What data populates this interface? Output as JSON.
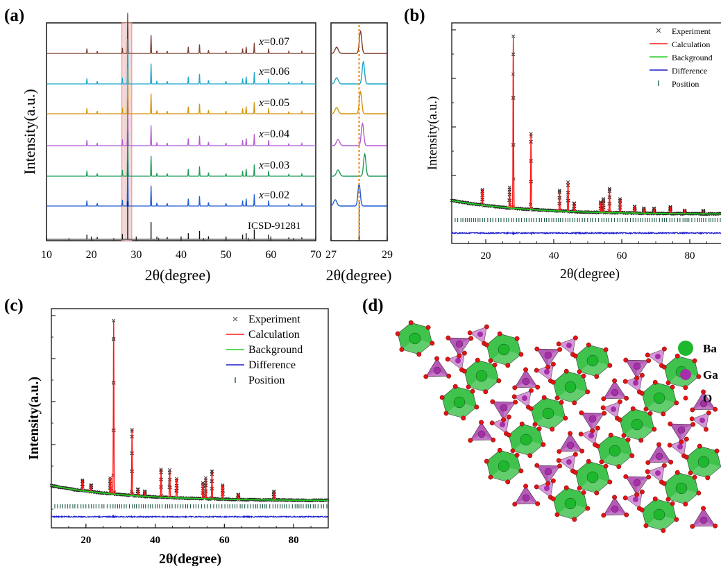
{
  "panels": {
    "a": {
      "label": "(a)",
      "xlabel": "2θ(degree)",
      "ylabel": "Intensity(a.u.)",
      "zoom_xlabel": "2θ(degree)",
      "reference_label": "ICSD-91281",
      "series_labels": [
        {
          "x_prefix": "x",
          "value_text": "=0.07"
        },
        {
          "x_prefix": "x",
          "value_text": "=0.06"
        },
        {
          "x_prefix": "x",
          "value_text": "=0.05"
        },
        {
          "x_prefix": "x",
          "value_text": "=0.04"
        },
        {
          "x_prefix": "x",
          "value_text": "=0.03"
        },
        {
          "x_prefix": "x",
          "value_text": "=0.02"
        }
      ]
    },
    "b": {
      "label": "(b)",
      "xlabel": "2θ(degree)",
      "ylabel": "Intensity(a.u.)",
      "legend": [
        "Experiment",
        "Calculation",
        "Background",
        "Difference",
        "Position"
      ]
    },
    "c": {
      "label": "(c)",
      "xlabel": "2θ(degree)",
      "ylabel": "Intensity(a.u.)",
      "legend": [
        "Experiment",
        "Calculation",
        "Background",
        "Difference",
        "Position"
      ]
    },
    "d": {
      "label": "(d)",
      "legend": [
        {
          "symbol": "Ba",
          "color": "#1db82e"
        },
        {
          "symbol": "Ga",
          "color": "#a52fa8"
        },
        {
          "symbol": "O",
          "color": "#e01515"
        }
      ]
    }
  },
  "colors": {
    "experiment": "#444444",
    "calculation": "#ff1a1a",
    "background": "#22cc22",
    "difference": "#1a1acc",
    "position": "#1e5a46",
    "highlight_band": "#f3b6b6",
    "highlight_band2": "#d9d9d9",
    "dash_line": "#f28c1e"
  },
  "chart_data": [
    {
      "type": "line",
      "panel": "a-main",
      "xlabel": "2θ(degree)",
      "ylabel": "Intensity(a.u.)",
      "xlim": [
        10,
        70
      ],
      "xticks": [
        10,
        20,
        30,
        40,
        50,
        60,
        70
      ],
      "series": [
        {
          "name": "x=0.07",
          "color": "#7a3b2e"
        },
        {
          "name": "x=0.06",
          "color": "#1aa6c9"
        },
        {
          "name": "x=0.05",
          "color": "#d4940a"
        },
        {
          "name": "x=0.04",
          "color": "#b25bd1"
        },
        {
          "name": "x=0.03",
          "color": "#1f9a5a"
        },
        {
          "name": "x=0.02",
          "color": "#1f5bd1"
        },
        {
          "name": "ICSD-91281",
          "color": "#111111"
        }
      ],
      "peaks": [
        {
          "x": 19.0,
          "h": 0.12
        },
        {
          "x": 21.3,
          "h": 0.06
        },
        {
          "x": 26.9,
          "h": 0.14
        },
        {
          "x": 28.1,
          "h": 1.0
        },
        {
          "x": 33.3,
          "h": 0.45
        },
        {
          "x": 34.6,
          "h": 0.07
        },
        {
          "x": 36.9,
          "h": 0.06
        },
        {
          "x": 41.6,
          "h": 0.16
        },
        {
          "x": 44.1,
          "h": 0.22
        },
        {
          "x": 46.1,
          "h": 0.08
        },
        {
          "x": 50.0,
          "h": 0.06
        },
        {
          "x": 53.7,
          "h": 0.12
        },
        {
          "x": 54.5,
          "h": 0.16
        },
        {
          "x": 56.3,
          "h": 0.26
        },
        {
          "x": 59.5,
          "h": 0.12
        },
        {
          "x": 64.0,
          "h": 0.05
        },
        {
          "x": 66.9,
          "h": 0.05
        }
      ],
      "highlight_range": [
        26.8,
        29.0
      ]
    },
    {
      "type": "line",
      "panel": "a-zoom",
      "xlabel": "2θ(degree)",
      "xlim": [
        27,
        29
      ],
      "xticks": [
        27,
        28,
        29
      ],
      "reference_line_x": 28.0,
      "peak_positions": [
        28.05,
        28.15,
        28.05,
        28.12,
        28.2,
        28.0
      ],
      "small_peak_positions": [
        27.2,
        27.2,
        27.2,
        27.25,
        27.25,
        27.15
      ]
    },
    {
      "type": "scatter",
      "panel": "b",
      "xlabel": "2θ(degree)",
      "ylabel": "Intensity(a.u.)",
      "xlim": [
        10,
        90
      ],
      "xticks": [
        20,
        40,
        60,
        80
      ],
      "series": [
        {
          "name": "Experiment"
        },
        {
          "name": "Calculation"
        },
        {
          "name": "Background"
        },
        {
          "name": "Difference"
        },
        {
          "name": "Position"
        }
      ],
      "peaks": [
        {
          "x": 19.0,
          "h": 0.09
        },
        {
          "x": 27.0,
          "h": 0.12
        },
        {
          "x": 28.1,
          "h": 1.0
        },
        {
          "x": 33.3,
          "h": 0.44
        },
        {
          "x": 41.7,
          "h": 0.12
        },
        {
          "x": 44.2,
          "h": 0.17
        },
        {
          "x": 46.0,
          "h": 0.05
        },
        {
          "x": 53.8,
          "h": 0.06
        },
        {
          "x": 54.6,
          "h": 0.08
        },
        {
          "x": 56.4,
          "h": 0.14
        },
        {
          "x": 59.5,
          "h": 0.08
        },
        {
          "x": 63.8,
          "h": 0.04
        },
        {
          "x": 66.5,
          "h": 0.03
        },
        {
          "x": 69.5,
          "h": 0.03
        },
        {
          "x": 74.3,
          "h": 0.04
        },
        {
          "x": 78.5,
          "h": 0.02
        },
        {
          "x": 84.0,
          "h": 0.02
        }
      ]
    },
    {
      "type": "scatter",
      "panel": "c",
      "xlabel": "2θ(degree)",
      "ylabel": "Intensity(a.u.)",
      "xlim": [
        10,
        90
      ],
      "xticks": [
        20,
        40,
        60,
        80
      ],
      "series": [
        {
          "name": "Experiment"
        },
        {
          "name": "Calculation"
        },
        {
          "name": "Background"
        },
        {
          "name": "Difference"
        },
        {
          "name": "Position"
        }
      ],
      "peaks": [
        {
          "x": 19.0,
          "h": 0.06
        },
        {
          "x": 21.5,
          "h": 0.04
        },
        {
          "x": 27.0,
          "h": 0.09
        },
        {
          "x": 28.0,
          "h": 1.0
        },
        {
          "x": 33.3,
          "h": 0.38
        },
        {
          "x": 35.0,
          "h": 0.04
        },
        {
          "x": 37.0,
          "h": 0.03
        },
        {
          "x": 41.7,
          "h": 0.16
        },
        {
          "x": 44.2,
          "h": 0.16
        },
        {
          "x": 46.2,
          "h": 0.11
        },
        {
          "x": 53.8,
          "h": 0.09
        },
        {
          "x": 54.6,
          "h": 0.12
        },
        {
          "x": 56.4,
          "h": 0.16
        },
        {
          "x": 59.5,
          "h": 0.08
        },
        {
          "x": 64.0,
          "h": 0.03
        },
        {
          "x": 74.3,
          "h": 0.05
        }
      ]
    }
  ]
}
